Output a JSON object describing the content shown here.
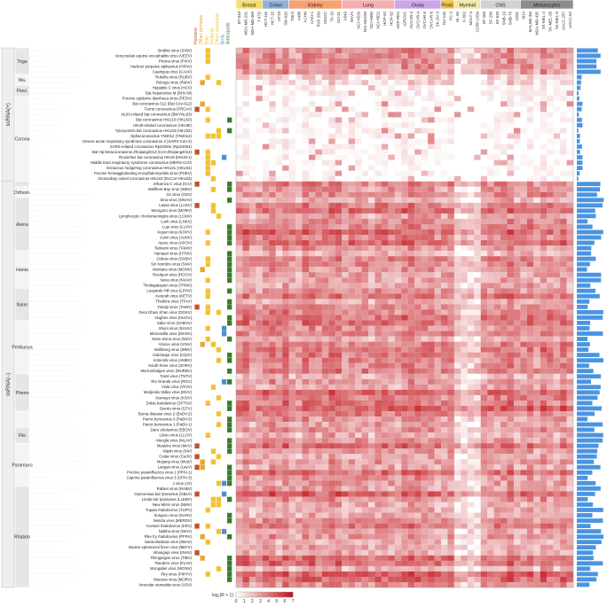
{
  "chart_data": {
    "type": "heatmap",
    "title": "",
    "xlabel": "",
    "ylabel": "",
    "groups": [
      {
        "label": "ssRNA(+)",
        "families": [
          {
            "label": "Toga",
            "viruses": [
              "Sindbis virus (SINV)",
              "Venezuelan equine encephalitis virus (VEEV)",
              "Pixuna virus (PIXV)",
              "Harbour porpoise alphavirus (HPAV)",
              "Caaingua virus (CAAV)"
            ]
          },
          {
            "label": "Ma.",
            "viruses": [
              "Rubella virus (RUBV)",
              "Ruhugu virus (RuhV)"
            ]
          },
          {
            "label": "Flavi.",
            "viruses": [
              "Hepatitis C virus (HCV)",
              "Bat hepacivirus M (BHV-M)"
            ]
          },
          {
            "label": "Corona",
            "viruses": [
              "Porcine epidemic diarrhoea virus (PEDV)",
              "Bat coronavirus 512 (Bat CoV-512)",
              "Ferret coronavirus (FRCoV)",
              "NL63-related bat coronavirus (BtKYNL63)",
              "Bat coronavirus HKU10 (HKU10)",
              "HKU8-related coronavirus (HKU8r)",
              "Tylonycteris bat coronavirus HKU33 (HKU33)",
              "Alphacoronavirus YN2012 (YN2012)",
              "Severe acute respiratory syndrome coronavirus 2 (SARS-CoV-2)",
              "SARS-related coronavirus Rp3/2004 (Rp3/2004)",
              "Bat Hp-betacoronavirus Zhejiang2013 (CoV-Zhejiang2013)",
              "Rousettus bat coronavirus HKU9 (HKU9-1)",
              "Middle East respiratory syndrome coronavirus (MERS-CoV)",
              "Erinaceus hedgehog coronavirus HKU31 (HKU31)",
              "Porcine hemagglutinating encephalomyelitis virus (PHEV)",
              "Dromedary camel coronavirus HKU23 (DcCoV-HKU23)"
            ]
          }
        ]
      },
      {
        "label": "ssRNA(−)",
        "families": [
          {
            "label": "",
            "viruses": [
              "Influenza C virus (ICV)"
            ]
          },
          {
            "label": "Orthom.",
            "viruses": [
              "Wellfleet Bay virus (WBV)",
              "Oz virus (OZV)"
            ]
          },
          {
            "label": "Arena",
            "viruses": [
              "Sina virus (SINAV)",
              "Lassa virus (LASV)",
              "Morogoro virus (MORV)",
              "Lymphocytic choriomeningitis virus (LCMV)",
              "Lunk virus (LNKV)",
              "Lujo virus (LUJV)",
              "Kopuri virus (KOPV)",
              "Junin virus (JUNV)",
              "Apore virus (APOV)",
              "Tamiami virus (TAMV)"
            ]
          },
          {
            "label": "Hanta",
            "viruses": [
              "Hantaan virus (HTNV)",
              "Oxbow virus (OXBV)",
              "Sin Nombre virus (SNV)",
              "Montano virus (MONV)",
              "Rockport virus (ROCV)",
              "Nova virus (NVAV)",
              "Thottapalayam virus (TPMV)"
            ]
          },
          {
            "label": "Nairo",
            "viruses": [
              "Leopards Hill virus (LPHV)",
              "Keterah virus (KETV)",
              "Thiafora virus (TFAV)",
              "Tamdy virus (TAMV)",
              "Dera Ghazi Khan virus (DGKV)",
              "Hughes virus (HUGV)"
            ]
          },
          {
            "label": "Peribunya",
            "viruses": [
              "Sabo virus (SABOV)",
              "Shuni virus (SHUV)",
              "Manzanilla virus (MANV)",
              "Ness Ziona virus (NZV)",
              "Vinces virus (VINV)",
              "Wolkberg virus (WBV)",
              "Calchaqui virus (CQIV)",
              "Anhembi virus (AMBV)",
              "South River virus (SORV)",
              "Murrumbidgee virus (MURBV)"
            ]
          },
          {
            "label": "Pheno",
            "viruses": [
              "Toreli virus (TNTV)",
              "Rio Grande virus (RGV)",
              "Viola virus (VIOV)",
              "Medjerda Valley virus (MVV)",
              "Kismayo virus (KISV)",
              "Dobie bandavirus (SFTSV)",
              "Guertu virus (GTV)"
            ]
          },
          {
            "label": "",
            "viruses": [
              "Borna disease virus 2 (BoDV-2)",
              "Parrot bornavirus 5 (PaBV-5)",
              "Parrot bornavirus 1 (PaBV-1)"
            ]
          },
          {
            "label": "Filo",
            "viruses": [
              "Zaire ebolavirus (EBOV)",
              "Lloviu virus (LLOV)",
              "Mengla virus (MLAV)"
            ]
          },
          {
            "label": "Paramyxo",
            "viruses": [
              "Measles virus (MeV)",
              "Nipah virus (NiV)",
              "Cedar virus (CedV)",
              "Mojiang virus (MojV)",
              "Langya virus (LayV)",
              "Porcine parainfluenza virus 1 (PPIV-1)",
              "Caprine parainfluenza virus 3 (CPIV-3)",
              "J virus (JV)"
            ]
          },
          {
            "label": "Rhabdo",
            "viruses": [
              "Rabies virus (RABV)",
              "Gannoruwa bat lyssavirus (GBLV)",
              "Lleida bat lyssavirus (LLEBV)",
              "New Minto virus (NMV)",
              "Tupaia rhabdovirus (TUPV)",
              "Sunguru virus (SUNV)",
              "Merida virus (MERDV)",
              "Kumasi rhabdovirus (KRV)",
              "Niakha virus (NIAV)",
              "Pike fry rhabdovirus (PFRV)",
              "Santa Barbara virus (SBAV)",
              "Bovine ephemeral fever virus (BEFV)",
              "Inhangapi virus (INHV)",
              "Tibrogargan virus (TIBV)",
              "Flanders virus (FLAV)",
              "Wongabel virus (WONV)",
              "Piry virus (PIRYV)",
              "Moreton virus (MORV)",
              "Vesicular stomatitis virus (VSV)"
            ]
          }
        ]
      }
    ],
    "host_columns": [
      "Humans",
      "Other primates",
      "Bats",
      "Rodents",
      "Other mammals",
      "Birds",
      "Arthropods"
    ],
    "host_colors": [
      "#c0542d",
      "#e8a533",
      "#f1c232",
      "#f1c232",
      "#f1c232",
      "#4f8fcf",
      "#3b7d2a"
    ],
    "tissues": [
      {
        "name": "Breast",
        "color": "#f6dc6a",
        "cell_lines": [
          "BT-549",
          "MDA-MB-231",
          "MDA-MB-468",
          "T-47D"
        ]
      },
      {
        "name": "Colon",
        "color": "#8fb0d8",
        "cell_lines": [
          "HCT-116",
          "HCT-15",
          "HT29",
          "SW-620"
        ]
      },
      {
        "name": "Kidney",
        "color": "#f6a170",
        "cell_lines": [
          "786-0",
          "A498",
          "ACHN",
          "CAKI-1",
          "RXF 393",
          "SN12C",
          "TK-10",
          "UO-31"
        ]
      },
      {
        "name": "Lung",
        "color": "#f4b0b0",
        "cell_lines": [
          "A549",
          "EKVX",
          "NCI-H226",
          "NCI-H322M",
          "NCI-H460",
          "NCI-H522",
          "HOP-62",
          "HOP-92"
        ]
      },
      {
        "name": "Ovary",
        "color": "#c8a6e8",
        "cell_lines": [
          "ADR-RES",
          "IGROV1",
          "OVCAR-3",
          "OVCAR-4",
          "OVCAR-5",
          "OVCAR-8",
          "SK-OV-3"
        ]
      },
      {
        "name": "Prost.",
        "color": "#f0c34a",
        "cell_lines": [
          "DU-145",
          "PC-3"
        ]
      },
      {
        "name": "Myeloid",
        "color": "#f2e8a8",
        "cell_lines": [
          "HL-60",
          "K-562",
          "MOLT-4",
          "CCRF-CEM"
        ]
      },
      {
        "name": "CNS",
        "color": "#d2d2d2",
        "cell_lines": [
          "SF-268",
          "SF-295",
          "SF-539",
          "SNB-19",
          "SNB-75",
          "U251"
        ]
      },
      {
        "name": "Melanocytes",
        "color": "#8d8d8d",
        "cell_lines": [
          "M14",
          "MALME-3M",
          "MDA-MB-435",
          "SK-MEL-2",
          "SK-MEL-28",
          "SK-MEL-5",
          "UACC-257",
          "UACC-62"
        ]
      }
    ],
    "colorbar": {
      "label": "log₂(R + 1)",
      "ticks": [
        0,
        1,
        2,
        3,
        4,
        5,
        6,
        7
      ],
      "range": [
        0,
        7
      ]
    },
    "colormap": [
      "#ffffff",
      "#c3151c"
    ],
    "bar_color": "#4a95e2"
  }
}
